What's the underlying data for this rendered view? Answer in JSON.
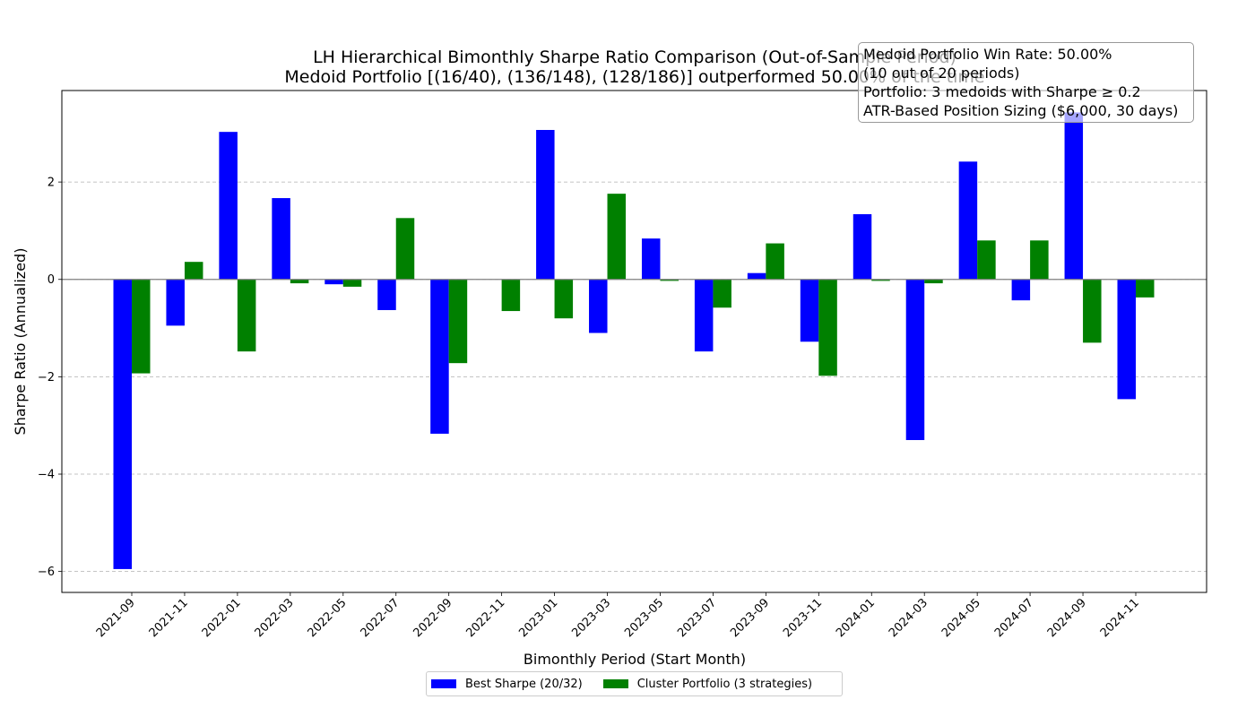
{
  "chart_data": {
    "type": "bar",
    "title": "LH Hierarchical Bimonthly Sharpe Ratio Comparison (Out-of-Sample Period)",
    "subtitle": "Medoid Portfolio [(16/40), (136/148), (128/186)] outperformed 50.00% of the time",
    "xlabel": "Bimonthly Period (Start Month)",
    "ylabel": "Sharpe Ratio (Annualized)",
    "ylim": [
      -6.43,
      3.88
    ],
    "yticks": [
      2,
      0,
      -2,
      -4,
      -6
    ],
    "ytick_labels": [
      "2",
      "0",
      "−2",
      "−4",
      "−6"
    ],
    "grid": "y-dashed",
    "legend_position": "bottom-center",
    "categories": [
      "2021-09",
      "2021-11",
      "2022-01",
      "2022-03",
      "2022-05",
      "2022-07",
      "2022-09",
      "2022-11",
      "2023-01",
      "2023-03",
      "2023-05",
      "2023-07",
      "2023-09",
      "2023-11",
      "2024-01",
      "2024-03",
      "2024-05",
      "2024-07",
      "2024-09",
      "2024-11"
    ],
    "series": [
      {
        "name": "Best Sharpe (20/32)",
        "color": "#0000ff",
        "values": [
          -5.95,
          -0.95,
          3.03,
          1.67,
          -0.1,
          -0.63,
          -3.17,
          0.0,
          3.07,
          -1.1,
          0.84,
          -1.48,
          0.13,
          -1.28,
          1.34,
          -3.3,
          2.42,
          -0.43,
          3.43,
          -2.46
        ]
      },
      {
        "name": "Cluster Portfolio (3 strategies)",
        "color": "#008000",
        "values": [
          -1.93,
          0.36,
          -1.48,
          -0.08,
          -0.15,
          1.26,
          -1.72,
          -0.65,
          -0.8,
          1.76,
          -0.03,
          -0.58,
          0.74,
          -1.98,
          -0.03,
          -0.08,
          0.8,
          0.8,
          -1.3,
          -0.37
        ]
      }
    ],
    "annotation": {
      "lines": [
        "Medoid Portfolio Win Rate: 50.00%",
        "(10 out of 20 periods)",
        "Portfolio: 3 medoids with Sharpe ≥ 0.2",
        "ATR-Based Position Sizing ($6,000, 30 days)"
      ],
      "position": "top-right"
    }
  }
}
